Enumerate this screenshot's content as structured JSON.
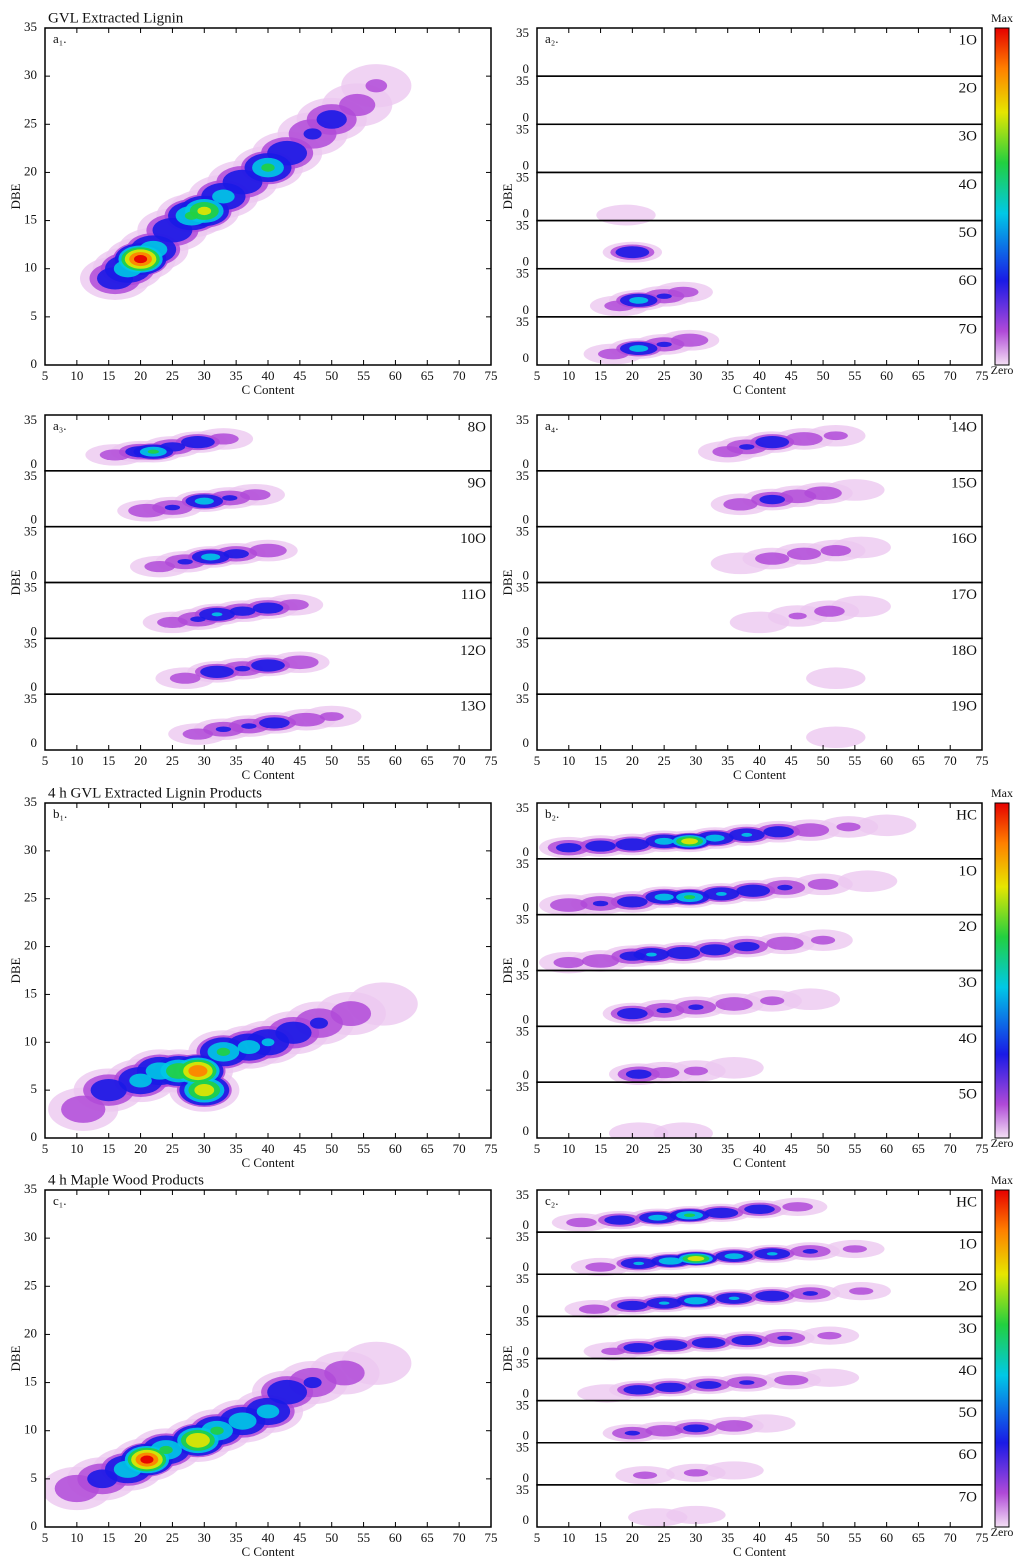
{
  "chart_data": [
    {
      "type": "heatmap",
      "title": "GVL Extracted Lignin",
      "panel_label": "a₁.",
      "xlabel": "C Content",
      "ylabel": "DBE",
      "xlim": [
        5,
        75
      ],
      "xticks": [
        5,
        10,
        15,
        20,
        25,
        30,
        35,
        40,
        45,
        50,
        55,
        60,
        65,
        70,
        75
      ],
      "ylim": [
        0,
        35
      ],
      "yticks": [
        0,
        5,
        10,
        15,
        20,
        25,
        30,
        35
      ],
      "x": [
        16,
        18,
        20,
        22,
        25,
        28,
        30,
        33,
        36,
        40,
        43,
        47,
        50,
        54,
        57
      ],
      "y": [
        9,
        10,
        11,
        12,
        14,
        15.5,
        16,
        17.5,
        19,
        20.5,
        22,
        24,
        25.5,
        27,
        29
      ],
      "intensity": [
        0.3,
        0.5,
        0.95,
        0.5,
        0.35,
        0.55,
        0.7,
        0.45,
        0.35,
        0.55,
        0.35,
        0.2,
        0.25,
        0.1,
        0.07
      ]
    },
    {
      "type": "heatmap-stack",
      "panel_label": "a₂.",
      "xlabel": "C Content",
      "ylabel": "DBE",
      "xlim": [
        5,
        75
      ],
      "xticks": [
        5,
        10,
        15,
        20,
        25,
        30,
        35,
        40,
        45,
        50,
        55,
        60,
        65,
        70,
        75
      ],
      "ylim": [
        0,
        35
      ],
      "yticks": [
        0,
        35
      ],
      "colorbar": {
        "max": "Max",
        "min": "Zero"
      },
      "subplots": [
        {
          "name": "1O",
          "x": [],
          "y": [],
          "intensity": []
        },
        {
          "name": "2O",
          "x": [],
          "y": [],
          "intensity": []
        },
        {
          "name": "3O",
          "x": [],
          "y": [],
          "intensity": []
        },
        {
          "name": "4O",
          "x": [
            19
          ],
          "y": [
            4
          ],
          "intensity": [
            0.05
          ]
        },
        {
          "name": "5O",
          "x": [
            20
          ],
          "y": [
            12
          ],
          "intensity": [
            0.35
          ]
        },
        {
          "name": "6O",
          "x": [
            18,
            21,
            25,
            28
          ],
          "y": [
            8,
            12,
            15,
            18
          ],
          "intensity": [
            0.1,
            0.45,
            0.2,
            0.1
          ]
        },
        {
          "name": "7O",
          "x": [
            17,
            21,
            25,
            29
          ],
          "y": [
            8,
            12,
            15,
            18
          ],
          "intensity": [
            0.1,
            0.45,
            0.2,
            0.15
          ]
        }
      ]
    },
    {
      "type": "heatmap-stack",
      "panel_label": "a₃.",
      "xlabel": "C Content",
      "ylabel": "DBE",
      "xlim": [
        5,
        75
      ],
      "xticks": [
        5,
        10,
        15,
        20,
        25,
        30,
        35,
        40,
        45,
        50,
        55,
        60,
        65,
        70,
        75
      ],
      "ylim": [
        0,
        35
      ],
      "yticks": [
        0,
        35
      ],
      "subplots": [
        {
          "name": "8O",
          "x": [
            16,
            20,
            22,
            25,
            29,
            33
          ],
          "y": [
            10,
            12,
            12,
            15,
            18,
            20
          ],
          "intensity": [
            0.1,
            0.3,
            0.55,
            0.25,
            0.35,
            0.1
          ]
        },
        {
          "name": "9O",
          "x": [
            21,
            25,
            30,
            34,
            38
          ],
          "y": [
            10,
            12,
            16,
            18,
            20
          ],
          "intensity": [
            0.15,
            0.2,
            0.45,
            0.2,
            0.1
          ]
        },
        {
          "name": "10O",
          "x": [
            23,
            27,
            31,
            35,
            40
          ],
          "y": [
            10,
            13,
            16,
            18,
            20
          ],
          "intensity": [
            0.1,
            0.2,
            0.45,
            0.25,
            0.15
          ]
        },
        {
          "name": "11O",
          "x": [
            25,
            29,
            32,
            36,
            40,
            44
          ],
          "y": [
            10,
            12,
            15,
            17,
            19,
            21
          ],
          "intensity": [
            0.1,
            0.2,
            0.4,
            0.25,
            0.3,
            0.1
          ]
        },
        {
          "name": "12O",
          "x": [
            27,
            32,
            36,
            40,
            45
          ],
          "y": [
            10,
            14,
            16,
            18,
            20
          ],
          "intensity": [
            0.1,
            0.35,
            0.2,
            0.35,
            0.15
          ]
        },
        {
          "name": "13O",
          "x": [
            29,
            33,
            37,
            41,
            46,
            50
          ],
          "y": [
            10,
            13,
            15,
            17,
            19,
            21
          ],
          "intensity": [
            0.1,
            0.2,
            0.2,
            0.3,
            0.15,
            0.08
          ]
        }
      ]
    },
    {
      "type": "heatmap-stack",
      "panel_label": "a₄.",
      "xlabel": "C Content",
      "ylabel": "DBE",
      "xlim": [
        5,
        75
      ],
      "xticks": [
        5,
        10,
        15,
        20,
        25,
        30,
        35,
        40,
        45,
        50,
        55,
        60,
        65,
        70,
        75
      ],
      "ylim": [
        0,
        35
      ],
      "yticks": [
        0,
        35
      ],
      "subplots": [
        {
          "name": "14O",
          "x": [
            35,
            38,
            42,
            47,
            52
          ],
          "y": [
            12,
            15,
            18,
            20,
            22
          ],
          "intensity": [
            0.1,
            0.2,
            0.35,
            0.15,
            0.08
          ]
        },
        {
          "name": "15O",
          "x": [
            37,
            42,
            46,
            50,
            55
          ],
          "y": [
            14,
            17,
            19,
            21,
            23
          ],
          "intensity": [
            0.12,
            0.25,
            0.15,
            0.15,
            0.06
          ]
        },
        {
          "name": "16O",
          "x": [
            37,
            42,
            47,
            52,
            56
          ],
          "y": [
            12,
            15,
            18,
            20,
            22
          ],
          "intensity": [
            0.06,
            0.12,
            0.12,
            0.1,
            0.05
          ]
        },
        {
          "name": "17O",
          "x": [
            40,
            46,
            51,
            56
          ],
          "y": [
            10,
            14,
            17,
            20
          ],
          "intensity": [
            0.05,
            0.07,
            0.1,
            0.05
          ]
        },
        {
          "name": "18O",
          "x": [
            52
          ],
          "y": [
            10
          ],
          "intensity": [
            0.06
          ]
        },
        {
          "name": "19O",
          "x": [
            52
          ],
          "y": [
            8
          ],
          "intensity": [
            0.04
          ]
        }
      ]
    },
    {
      "type": "heatmap",
      "title": "4 h GVL Extracted Lignin Products",
      "panel_label": "b₁.",
      "xlabel": "C Content",
      "ylabel": "DBE",
      "xlim": [
        5,
        75
      ],
      "xticks": [
        5,
        10,
        15,
        20,
        25,
        30,
        35,
        40,
        45,
        50,
        55,
        60,
        65,
        70,
        75
      ],
      "ylim": [
        0,
        35
      ],
      "yticks": [
        0,
        5,
        10,
        15,
        20,
        25,
        30,
        35
      ],
      "x": [
        11,
        15,
        20,
        23,
        26,
        29,
        30,
        33,
        37,
        40,
        44,
        48,
        53,
        58
      ],
      "y": [
        3,
        5,
        6,
        7,
        7,
        7,
        5,
        9,
        9.5,
        10,
        11,
        12,
        13,
        14
      ],
      "intensity": [
        0.15,
        0.3,
        0.45,
        0.5,
        0.65,
        0.9,
        0.75,
        0.55,
        0.45,
        0.4,
        0.3,
        0.2,
        0.12,
        0.06
      ]
    },
    {
      "type": "heatmap-stack",
      "panel_label": "b₂.",
      "xlabel": "C Content",
      "ylabel": "DBE",
      "xlim": [
        5,
        75
      ],
      "xticks": [
        5,
        10,
        15,
        20,
        25,
        30,
        35,
        40,
        45,
        50,
        55,
        60,
        65,
        70,
        75
      ],
      "ylim": [
        0,
        35
      ],
      "yticks": [
        0,
        35
      ],
      "colorbar": {
        "max": "Max",
        "min": "Zero"
      },
      "subplots": [
        {
          "name": "HC",
          "x": [
            10,
            15,
            20,
            25,
            29,
            33,
            38,
            43,
            48,
            54,
            60
          ],
          "y": [
            7,
            8,
            9,
            11,
            11,
            13,
            15,
            17,
            18,
            20,
            21
          ],
          "intensity": [
            0.25,
            0.3,
            0.35,
            0.45,
            0.75,
            0.45,
            0.4,
            0.3,
            0.15,
            0.08,
            0.05
          ]
        },
        {
          "name": "1O",
          "x": [
            10,
            15,
            20,
            25,
            29,
            34,
            39,
            44,
            50,
            57
          ],
          "y": [
            6,
            7,
            8,
            11,
            11,
            13,
            15,
            17,
            19,
            21
          ],
          "intensity": [
            0.15,
            0.2,
            0.3,
            0.45,
            0.55,
            0.4,
            0.35,
            0.2,
            0.1,
            0.05
          ]
        },
        {
          "name": "2O",
          "x": [
            10,
            15,
            20,
            23,
            28,
            33,
            38,
            44,
            50
          ],
          "y": [
            5,
            6,
            9,
            10,
            11,
            13,
            15,
            17,
            19
          ],
          "intensity": [
            0.1,
            0.15,
            0.25,
            0.4,
            0.35,
            0.3,
            0.25,
            0.15,
            0.08
          ]
        },
        {
          "name": "3O",
          "x": [
            20,
            25,
            30,
            36,
            42,
            48
          ],
          "y": [
            8,
            10,
            12,
            14,
            16,
            17
          ],
          "intensity": [
            0.3,
            0.2,
            0.2,
            0.15,
            0.08,
            0.05
          ]
        },
        {
          "name": "4O",
          "x": [
            21,
            25,
            30,
            36
          ],
          "y": [
            5,
            6,
            7,
            9
          ],
          "intensity": [
            0.25,
            0.1,
            0.08,
            0.06
          ]
        },
        {
          "name": "5O",
          "x": [
            21,
            28
          ],
          "y": [
            3,
            3
          ],
          "intensity": [
            0.05,
            0.04
          ]
        }
      ]
    },
    {
      "type": "heatmap",
      "title": "4 h Maple Wood Products",
      "panel_label": "c₁.",
      "xlabel": "C Content",
      "ylabel": "DBE",
      "xlim": [
        5,
        75
      ],
      "xticks": [
        5,
        10,
        15,
        20,
        25,
        30,
        35,
        40,
        45,
        50,
        55,
        60,
        65,
        70,
        75
      ],
      "ylim": [
        0,
        35
      ],
      "yticks": [
        0,
        5,
        10,
        15,
        20,
        25,
        30,
        35
      ],
      "x": [
        10,
        14,
        18,
        21,
        24,
        29,
        32,
        36,
        40,
        43,
        47,
        52,
        57
      ],
      "y": [
        4,
        5,
        6,
        7,
        8,
        9,
        10,
        11,
        12,
        14,
        15,
        16,
        17
      ],
      "intensity": [
        0.15,
        0.25,
        0.5,
        0.95,
        0.55,
        0.8,
        0.55,
        0.5,
        0.45,
        0.35,
        0.2,
        0.12,
        0.06
      ]
    },
    {
      "type": "heatmap-stack",
      "panel_label": "c₂.",
      "xlabel": "C Content",
      "ylabel": "DBE",
      "xlim": [
        5,
        75
      ],
      "xticks": [
        5,
        10,
        15,
        20,
        25,
        30,
        35,
        40,
        45,
        50,
        55,
        60,
        65,
        70,
        75
      ],
      "ylim": [
        0,
        35
      ],
      "yticks": [
        0,
        35
      ],
      "colorbar": {
        "max": "Max",
        "min": "Zero"
      },
      "subplots": [
        {
          "name": "HC",
          "x": [
            12,
            18,
            24,
            29,
            34,
            40,
            46
          ],
          "y": [
            8,
            10,
            12,
            14,
            16,
            19,
            21
          ],
          "intensity": [
            0.1,
            0.3,
            0.45,
            0.55,
            0.35,
            0.3,
            0.1
          ]
        },
        {
          "name": "1O",
          "x": [
            15,
            21,
            26,
            30,
            36,
            42,
            48,
            55
          ],
          "y": [
            6,
            9,
            11,
            13,
            15,
            17,
            19,
            21
          ],
          "intensity": [
            0.1,
            0.4,
            0.5,
            0.75,
            0.45,
            0.4,
            0.2,
            0.08
          ]
        },
        {
          "name": "2O",
          "x": [
            14,
            20,
            25,
            30,
            36,
            42,
            48,
            56
          ],
          "y": [
            6,
            9,
            11,
            13,
            15,
            17,
            19,
            21
          ],
          "intensity": [
            0.1,
            0.3,
            0.4,
            0.5,
            0.4,
            0.35,
            0.2,
            0.08
          ]
        },
        {
          "name": "3O",
          "x": [
            17,
            21,
            26,
            32,
            38,
            44,
            51
          ],
          "y": [
            6,
            9,
            11,
            13,
            15,
            17,
            19
          ],
          "intensity": [
            0.08,
            0.3,
            0.35,
            0.35,
            0.3,
            0.2,
            0.08
          ]
        },
        {
          "name": "4O",
          "x": [
            16,
            21,
            26,
            32,
            38,
            45,
            51
          ],
          "y": [
            6,
            9,
            11,
            13,
            15,
            17,
            19
          ],
          "intensity": [
            0.05,
            0.3,
            0.3,
            0.25,
            0.2,
            0.12,
            0.05
          ]
        },
        {
          "name": "5O",
          "x": [
            20,
            25,
            30,
            36,
            41
          ],
          "y": [
            8,
            10,
            12,
            14,
            16
          ],
          "intensity": [
            0.2,
            0.15,
            0.25,
            0.15,
            0.06
          ]
        },
        {
          "name": "6O",
          "x": [
            22,
            30,
            36
          ],
          "y": [
            8,
            10,
            12
          ],
          "intensity": [
            0.08,
            0.08,
            0.05
          ]
        },
        {
          "name": "7O",
          "x": [
            24,
            30
          ],
          "y": [
            8,
            10
          ],
          "intensity": [
            0.04,
            0.03
          ]
        }
      ]
    }
  ]
}
